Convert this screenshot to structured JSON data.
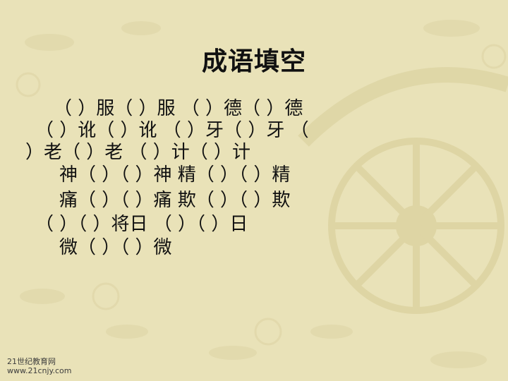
{
  "slide": {
    "title": "成语填空",
    "lines": [
      "（ ）服（ ）服 （ ）德（ ）德",
      "（ ）讹（ ）讹 （ ）牙（ ）牙 （",
      "）老（ ）老 （ ）计（ ）计",
      "神（ ）（ ）神 精（ ）（ ）精",
      "痛（ ）（ ）痛 欺（ ）（ ）欺",
      "（ ）（ ）将日 （ ）（ ）日",
      "微（ ）（ ）微"
    ]
  },
  "watermark": {
    "line1": "21世纪教育网",
    "line2": "www.21cnjy.com"
  },
  "colors": {
    "background": "#e9e2b8",
    "ornament": "#d8cfa0",
    "text": "#111111"
  },
  "icons": {
    "background_art": "chariot-ornament-icon"
  }
}
